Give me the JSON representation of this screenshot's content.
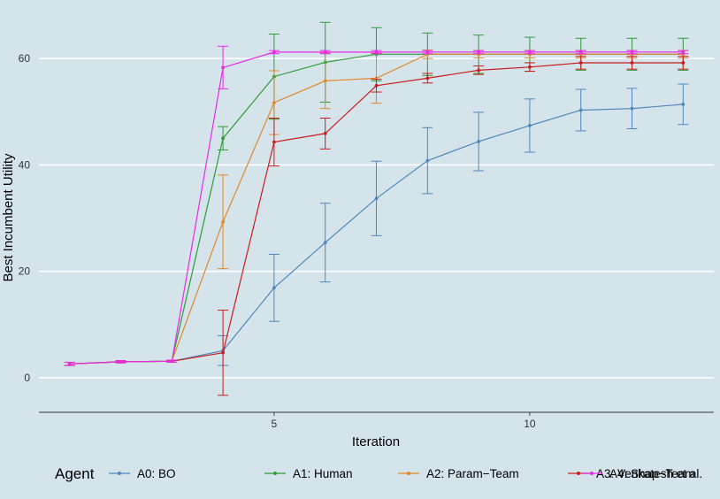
{
  "chart_data": {
    "type": "line",
    "title": "",
    "xlabel": "Iteration",
    "ylabel": "Best Incumbent Utility",
    "xlim": [
      0.4,
      13.6
    ],
    "ylim": [
      -6.5,
      71
    ],
    "x_ticks": [
      5,
      10
    ],
    "y_ticks": [
      0,
      20,
      40,
      60
    ],
    "grid": "horizontal major",
    "legend_title": "Agent",
    "legend_position": "bottom",
    "x": [
      1,
      2,
      3,
      4,
      5,
      6,
      7,
      8,
      9,
      10,
      11,
      12,
      13
    ],
    "series": [
      {
        "name": "A0: BO",
        "color": "#4f87ba",
        "values": [
          2.6,
          3.0,
          3.1,
          5.1,
          16.9,
          25.4,
          33.7,
          40.8,
          44.4,
          47.4,
          50.3,
          50.6,
          51.4
        ],
        "error": [
          0.3,
          0.2,
          0.2,
          2.8,
          6.3,
          7.4,
          7.0,
          6.2,
          5.5,
          5.0,
          3.9,
          3.8,
          3.8
        ]
      },
      {
        "name": "A1: Human",
        "color": "#2f9a3a",
        "values": [
          2.6,
          3.0,
          3.1,
          45.0,
          56.6,
          59.3,
          60.8,
          60.8,
          60.8,
          60.8,
          60.8,
          60.8,
          60.8
        ],
        "error": [
          0.3,
          0.2,
          0.2,
          2.2,
          8.0,
          7.5,
          5.0,
          4.0,
          3.6,
          3.2,
          3.0,
          3.0,
          3.0
        ]
      },
      {
        "name": "A2: Param−Team",
        "color": "#e0882b",
        "values": [
          2.6,
          3.0,
          3.1,
          29.3,
          51.7,
          55.8,
          56.3,
          60.8,
          60.8,
          60.8,
          60.8,
          60.8,
          60.8
        ],
        "error": [
          0.3,
          0.2,
          0.2,
          8.8,
          6.0,
          5.2,
          4.7,
          0.8,
          0.7,
          0.7,
          0.7,
          0.7,
          0.7
        ]
      },
      {
        "name": "A3: Venkatesh et al.",
        "color": "#c61e1e",
        "values": [
          2.6,
          3.0,
          3.1,
          4.7,
          44.3,
          45.9,
          54.9,
          56.3,
          57.8,
          58.4,
          59.2,
          59.2,
          59.2
        ],
        "error": [
          0.3,
          0.2,
          0.2,
          8.0,
          4.5,
          2.9,
          1.2,
          0.9,
          0.8,
          0.8,
          1.2,
          1.2,
          1.2
        ]
      },
      {
        "name": "A4: Shap−Team",
        "color": "#e62be6",
        "values": [
          2.6,
          3.0,
          3.1,
          58.3,
          61.2,
          61.2,
          61.2,
          61.2,
          61.2,
          61.2,
          61.2,
          61.2,
          61.2
        ],
        "error": [
          0.3,
          0.2,
          0.2,
          4.0,
          0.3,
          0.3,
          0.3,
          0.3,
          0.3,
          0.3,
          0.3,
          0.3,
          0.3
        ]
      }
    ]
  }
}
